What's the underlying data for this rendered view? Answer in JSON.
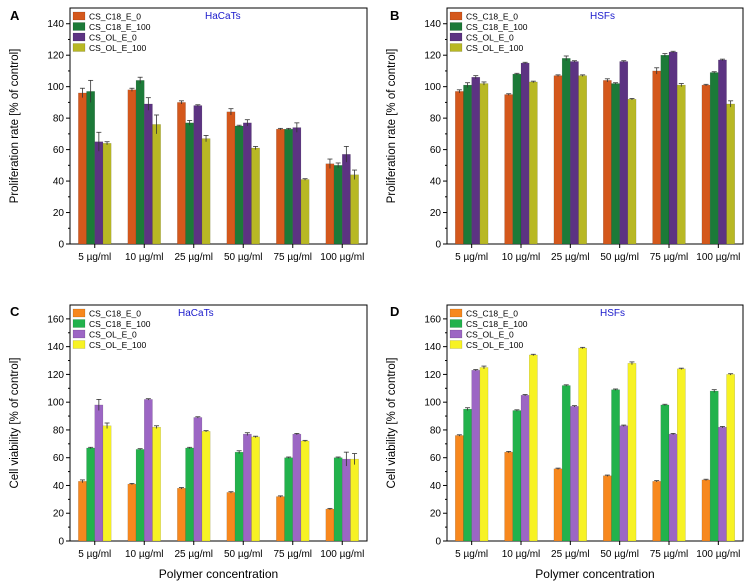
{
  "figure": {
    "shared_xlabel": "Polymer concentration"
  },
  "chart_data": [
    {
      "panel": "A",
      "type": "bar",
      "title": "HaCaTs",
      "ylabel": "Proliferation rate [% of control]",
      "ylim": [
        0,
        150
      ],
      "yticks": [
        0,
        20,
        40,
        60,
        80,
        100,
        120,
        140
      ],
      "categories": [
        "5 µg/ml",
        "10 µg/ml",
        "25 µg/ml",
        "50 µg/ml",
        "75 µg/ml",
        "100 µg/ml"
      ],
      "series": [
        {
          "name": "CS_C18_E_0",
          "color": "#d4581c",
          "values": [
            96,
            98,
            90,
            84,
            73,
            51
          ],
          "errors": [
            3,
            1,
            1,
            2,
            0.5,
            3
          ]
        },
        {
          "name": "CS_C18_E_100",
          "color": "#1c7a38",
          "values": [
            97,
            104,
            77,
            75,
            73,
            50
          ],
          "errors": [
            7,
            2,
            1.5,
            0.5,
            0.5,
            1.5
          ]
        },
        {
          "name": "CS_OL_E_0",
          "color": "#5c3382",
          "values": [
            65,
            89,
            88,
            77,
            74,
            57
          ],
          "errors": [
            6,
            4,
            0.5,
            2,
            3,
            5
          ]
        },
        {
          "name": "CS_OL_E_100",
          "color": "#b8b824",
          "values": [
            64,
            76,
            67,
            61,
            41,
            44
          ],
          "errors": [
            1,
            6,
            2,
            1,
            0.5,
            3
          ]
        }
      ],
      "legend_position": "top-left"
    },
    {
      "panel": "B",
      "type": "bar",
      "title": "HSFs",
      "ylabel": "Proliferation rate [% of control]",
      "ylim": [
        0,
        150
      ],
      "yticks": [
        0,
        20,
        40,
        60,
        80,
        100,
        120,
        140
      ],
      "categories": [
        "5 µg/ml",
        "10 µg/ml",
        "25 µg/ml",
        "50 µg/ml",
        "75 µg/ml",
        "100 µg/ml"
      ],
      "series": [
        {
          "name": "CS_C18_E_0",
          "color": "#d4581c",
          "values": [
            97,
            95,
            107,
            104,
            110,
            101
          ],
          "errors": [
            1,
            0.5,
            0.5,
            1,
            2,
            0.5
          ]
        },
        {
          "name": "CS_C18_E_100",
          "color": "#1c7a38",
          "values": [
            101,
            108,
            118,
            102,
            120,
            109
          ],
          "errors": [
            1.5,
            0.5,
            1.5,
            0.5,
            1,
            0.5
          ]
        },
        {
          "name": "CS_OL_E_0",
          "color": "#5c3382",
          "values": [
            106,
            115,
            116,
            116,
            122,
            117
          ],
          "errors": [
            1,
            0.5,
            0.5,
            0.5,
            0.5,
            0.5
          ]
        },
        {
          "name": "CS_OL_E_100",
          "color": "#b8b824",
          "values": [
            102,
            103,
            107,
            92,
            101,
            89
          ],
          "errors": [
            1,
            0.5,
            0.5,
            0.5,
            1,
            2
          ]
        }
      ],
      "legend_position": "top-left"
    },
    {
      "panel": "C",
      "type": "bar",
      "title": "HaCaTs",
      "ylabel": "Cell viability [% of control]",
      "xlabel": "Polymer concentration",
      "ylim": [
        0,
        170
      ],
      "yticks": [
        0,
        20,
        40,
        60,
        80,
        100,
        120,
        140,
        160
      ],
      "categories": [
        "5 µg/ml",
        "10 µg/ml",
        "25 µg/ml",
        "50 µg/ml",
        "75 µg/ml",
        "100 µg/ml"
      ],
      "series": [
        {
          "name": "CS_C18_E_0",
          "color": "#f7881e",
          "values": [
            43,
            41,
            38,
            35,
            32,
            23
          ],
          "errors": [
            1,
            0.5,
            0.5,
            0.5,
            0.5,
            0.5
          ]
        },
        {
          "name": "CS_C18_E_100",
          "color": "#22b24c",
          "values": [
            67,
            66,
            67,
            64,
            60,
            60
          ],
          "errors": [
            0.5,
            0.5,
            0.5,
            1,
            0.5,
            0.5
          ]
        },
        {
          "name": "CS_OL_E_0",
          "color": "#9c66c4",
          "values": [
            98,
            102,
            89,
            77,
            77,
            59
          ],
          "errors": [
            4,
            0.5,
            0.5,
            1,
            0.5,
            5
          ]
        },
        {
          "name": "CS_OL_E_100",
          "color": "#f7f224",
          "values": [
            83,
            82,
            79,
            75,
            72,
            59
          ],
          "errors": [
            2,
            1,
            0.5,
            0.5,
            0.5,
            4
          ]
        }
      ],
      "legend_position": "top-left"
    },
    {
      "panel": "D",
      "type": "bar",
      "title": "HSFs",
      "ylabel": "Cell viability [% of control]",
      "xlabel": "Polymer concentration",
      "ylim": [
        0,
        170
      ],
      "yticks": [
        0,
        20,
        40,
        60,
        80,
        100,
        120,
        140,
        160
      ],
      "categories": [
        "5 µg/ml",
        "10 µg/ml",
        "25 µg/ml",
        "50 µg/ml",
        "75 µg/ml",
        "100 µg/ml"
      ],
      "series": [
        {
          "name": "CS_C18_E_0",
          "color": "#f7881e",
          "values": [
            76,
            64,
            52,
            47,
            43,
            44
          ],
          "errors": [
            0.5,
            0.5,
            0.5,
            0.5,
            0.5,
            0.5
          ]
        },
        {
          "name": "CS_C18_E_100",
          "color": "#22b24c",
          "values": [
            95,
            94,
            112,
            109,
            98,
            108
          ],
          "errors": [
            1,
            0.5,
            0.5,
            0.5,
            0.5,
            1
          ]
        },
        {
          "name": "CS_OL_E_0",
          "color": "#9c66c4",
          "values": [
            123,
            105,
            97,
            83,
            77,
            82
          ],
          "errors": [
            0.5,
            0.5,
            0.5,
            0.5,
            0.5,
            0.5
          ]
        },
        {
          "name": "CS_OL_E_100",
          "color": "#f7f224",
          "values": [
            125,
            134,
            139,
            128,
            124,
            120
          ],
          "errors": [
            1,
            0.5,
            0.5,
            1,
            0.5,
            0.5
          ]
        }
      ],
      "legend_position": "top-left"
    }
  ]
}
